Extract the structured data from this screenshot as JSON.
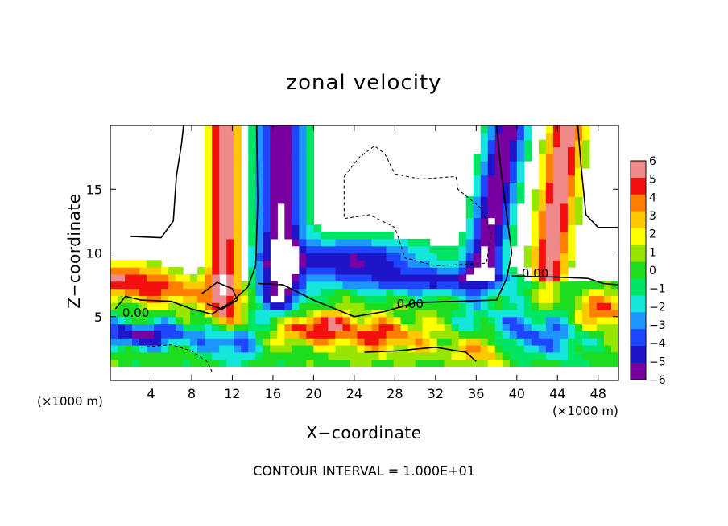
{
  "chart_data": {
    "type": "heatmap",
    "title": "zonal velocity",
    "xlabel": "X−coordinate",
    "ylabel": "Z−coordinate",
    "x_multiplier_left": "(×1000 m)",
    "x_multiplier_right": "(×1000 m)",
    "footnote": "CONTOUR INTERVAL = 1.000E+01",
    "xlim": [
      0,
      50
    ],
    "ylim": [
      0,
      20
    ],
    "x_ticks": [
      4,
      8,
      12,
      16,
      20,
      24,
      28,
      32,
      36,
      40,
      44,
      48
    ],
    "y_ticks": [
      5,
      10,
      15
    ],
    "colorbar": {
      "levels": [
        6,
        5,
        4,
        3,
        2,
        1,
        0,
        -1,
        -2,
        -3,
        -4,
        -5,
        -6
      ],
      "colors": [
        "#f08a8a",
        "#f51010",
        "#ff8000",
        "#ffc800",
        "#ffff00",
        "#96e600",
        "#1edc1e",
        "#00e664",
        "#14e6dc",
        "#1e96ff",
        "#1e46ff",
        "#1e14c8",
        "#7800a0"
      ]
    },
    "contour_labels": [
      {
        "text": "0.00",
        "x": 2.5,
        "y": 5.3
      },
      {
        "text": "0.00",
        "x": 29.5,
        "y": 6.0
      },
      {
        "text": "0.00",
        "x": 41.8,
        "y": 8.4
      }
    ],
    "features": [
      {
        "desc": "positive column",
        "x": [
          10,
          13
        ],
        "z": [
          4,
          20
        ],
        "value": 6
      },
      {
        "desc": "negative column",
        "x": [
          15,
          18.5
        ],
        "z": [
          4,
          20
        ],
        "value": -5
      },
      {
        "desc": "negative diagonal band",
        "x": [
          36,
          42
        ],
        "z": [
          8,
          20
        ],
        "value": -5
      },
      {
        "desc": "positive diagonal band",
        "x": [
          40,
          46
        ],
        "z": [
          9,
          20
        ],
        "value": 5
      },
      {
        "desc": "low-level mixed layer",
        "x": [
          0,
          50
        ],
        "z": [
          2,
          8
        ],
        "value": 0
      },
      {
        "desc": "negative surface jet",
        "x": [
          0,
          8
        ],
        "z": [
          2,
          4.5
        ],
        "value": -4
      }
    ]
  }
}
